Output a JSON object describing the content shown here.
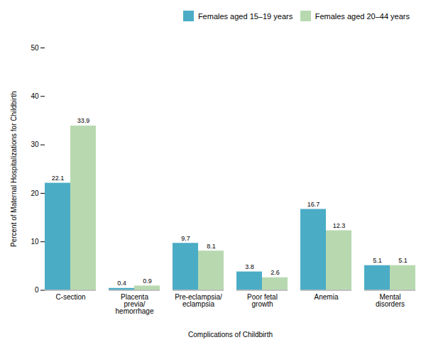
{
  "chart_data": {
    "type": "bar",
    "categories": [
      "C-section",
      "Placenta\nprevia/\nhemorrhage",
      "Pre-eclampsia/\neclampsia",
      "Poor fetal\ngrowth",
      "Anemia",
      "Mental\ndisorders"
    ],
    "series": [
      {
        "name": "Females aged 15–19 years",
        "color": "#4bacc6",
        "values": [
          22.1,
          0.4,
          9.7,
          3.8,
          16.7,
          5.1
        ]
      },
      {
        "name": "Females aged 20–44 years",
        "color": "#b8d9b0",
        "values": [
          33.9,
          0.9,
          8.1,
          2.6,
          12.3,
          5.1
        ]
      }
    ],
    "xlabel": "Complications of Childbirth",
    "ylabel": "Percent of Maternal Hospitalizations for Childbirth",
    "ylim": [
      0,
      50
    ],
    "yticks": [
      0,
      10,
      20,
      30,
      40,
      50
    ],
    "data_labels": true,
    "legend": "upper right",
    "grid": false
  }
}
